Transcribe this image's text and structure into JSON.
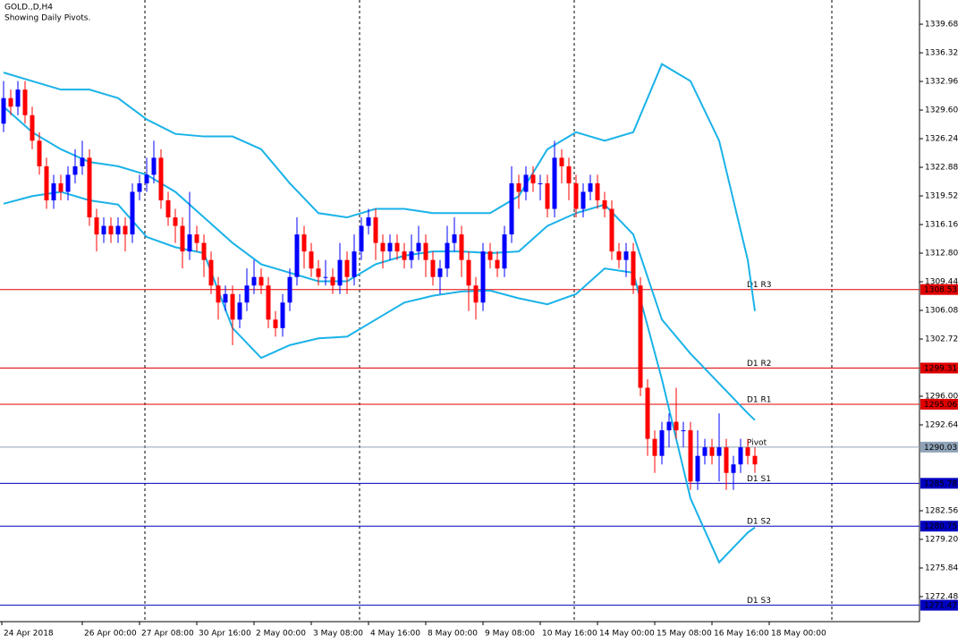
{
  "chart_data": {
    "type": "candlestick",
    "title": "GOLD.,D,H4",
    "subtitle": "Showing Daily Pivots.",
    "ylim": [
      1269.54,
      1342.52
    ],
    "yticks": [
      1339.68,
      1336.32,
      1332.96,
      {
        "value": 1329.6,
        "label": "1329.60"
      },
      1326.24,
      1322.88,
      1319.52,
      1316.16,
      {
        "value": 1312.8,
        "label": "1312.80"
      },
      1309.44,
      1306.08,
      1302.72,
      {
        "value": 1296,
        "label": "1296.00"
      },
      1292.64,
      1282.56,
      {
        "value": 1279.2,
        "label": "1279.20"
      },
      1275.84,
      1272.48
    ],
    "time_labels": [
      "24 Apr 2018",
      "26 Apr 00:00",
      "27 Apr 08:00",
      "30 Apr 16:00",
      "2 May 00:00",
      "3 May 08:00",
      "4 May 16:00",
      "8 May 00:00",
      "9 May 08:00",
      "10 May 16:00",
      "14 May 00:00",
      "15 May 08:00",
      "16 May 16:00",
      "18 May 00:00"
    ],
    "up_color": "#0000ff",
    "down_color": "#ff0000",
    "open": [
      1328,
      1331,
      1330,
      1332,
      1329,
      1326,
      1323,
      1319,
      1321,
      1320,
      1322,
      1323,
      1324,
      1317,
      1315,
      1316,
      1315,
      1316,
      1315,
      1320,
      1321,
      1322,
      1324,
      1319,
      1317,
      1316,
      1313,
      1315,
      1314,
      1312,
      1309,
      1307,
      1308,
      1305,
      1307,
      1309,
      1310,
      1309,
      1305,
      1304,
      1307,
      1310,
      1315,
      1313,
      1311,
      1310,
      1310,
      1309,
      1312,
      1310,
      1313,
      1316,
      1317,
      1314,
      1313,
      1314,
      1313,
      1312,
      1313,
      1314,
      1312,
      1310,
      1311,
      1314,
      1315,
      1312,
      1309,
      1307,
      1313,
      1312,
      1311,
      1315,
      1321,
      1320,
      1322,
      1321,
      1321,
      1318,
      1324,
      1323,
      1321,
      1318,
      1320,
      1321,
      1319,
      1318,
      1313,
      1312,
      1313,
      1309,
      1297,
      1291,
      1289,
      1292,
      1293,
      1292,
      1292,
      1286,
      1289,
      1290,
      1289,
      1290,
      1287,
      1288,
      1290,
      1289
    ],
    "high": [
      1333,
      1332,
      1333,
      1333,
      1330,
      1327,
      1324,
      1322,
      1322,
      1323,
      1325,
      1326,
      1325,
      1318,
      1317,
      1317,
      1317,
      1317,
      1321,
      1322,
      1324,
      1326,
      1325,
      1320,
      1318,
      1317,
      1320,
      1316,
      1315,
      1313,
      1310,
      1309,
      1309,
      1308,
      1311,
      1312,
      1311,
      1310,
      1306,
      1308,
      1311,
      1317,
      1316,
      1314,
      1312,
      1312,
      1311,
      1314,
      1313,
      1315,
      1317,
      1318,
      1318,
      1315,
      1315,
      1315,
      1314,
      1315,
      1316,
      1315,
      1313,
      1312,
      1316,
      1317,
      1316,
      1313,
      1310,
      1314,
      1314,
      1313,
      1316,
      1323,
      1322,
      1323,
      1323,
      1322,
      1322,
      1326,
      1325,
      1324,
      1322,
      1321,
      1322,
      1322,
      1320,
      1319,
      1314,
      1314,
      1314,
      1310,
      1298,
      1292,
      1293,
      1294,
      1297,
      1293,
      1293,
      1292,
      1291,
      1291,
      1294,
      1291,
      1289,
      1291,
      1291,
      1290
    ],
    "low": [
      1327,
      1329,
      1329,
      1328,
      1325,
      1322,
      1318,
      1318,
      1319,
      1319,
      1321,
      1322,
      1316,
      1313,
      1314,
      1314,
      1314,
      1313,
      1314,
      1319,
      1320,
      1321,
      1318,
      1316,
      1314,
      1311,
      1312,
      1313,
      1310,
      1308,
      1305,
      1306,
      1302,
      1304,
      1306,
      1308,
      1308,
      1304,
      1303,
      1303,
      1306,
      1309,
      1311,
      1310,
      1309,
      1309,
      1308,
      1308,
      1308,
      1309,
      1312,
      1315,
      1312,
      1311,
      1312,
      1312,
      1311,
      1311,
      1312,
      1310,
      1309,
      1308,
      1310,
      1313,
      1310,
      1306,
      1305,
      1306,
      1311,
      1310,
      1310,
      1314,
      1318,
      1319,
      1320,
      1319,
      1317,
      1317,
      1321,
      1319,
      1317,
      1317,
      1319,
      1318,
      1317,
      1312,
      1311,
      1310,
      1308,
      1296,
      1289,
      1287,
      1288,
      1290,
      1291,
      1290,
      1285,
      1285,
      1288,
      1288,
      1286,
      1285,
      1285,
      1287,
      1288,
      1287
    ],
    "close": [
      1331,
      1330,
      1332,
      1329,
      1326,
      1323,
      1319,
      1321,
      1320,
      1322,
      1323,
      1324,
      1317,
      1315,
      1316,
      1315,
      1316,
      1315,
      1320,
      1321,
      1322,
      1324,
      1319,
      1317,
      1316,
      1313,
      1315,
      1314,
      1312,
      1309,
      1307,
      1308,
      1305,
      1307,
      1309,
      1310,
      1309,
      1305,
      1304,
      1307,
      1310,
      1315,
      1313,
      1311,
      1310,
      1310,
      1309,
      1312,
      1310,
      1313,
      1316,
      1317,
      1314,
      1313,
      1314,
      1313,
      1312,
      1313,
      1314,
      1312,
      1310,
      1311,
      1314,
      1315,
      1312,
      1309,
      1307,
      1313,
      1312,
      1311,
      1315,
      1321,
      1320,
      1322,
      1321,
      1321,
      1318,
      1324,
      1323,
      1321,
      1318,
      1320,
      1321,
      1319,
      1318,
      1313,
      1312,
      1313,
      1309,
      1297,
      1291,
      1289,
      1292,
      1293,
      1292,
      1292,
      1286,
      1289,
      1290,
      1289,
      1290,
      1287,
      1288,
      1290,
      1289,
      1288
    ],
    "bands": {
      "color": "#1ab2e8",
      "x": [
        0,
        4,
        8,
        12,
        16,
        20,
        24,
        28,
        32,
        36,
        40,
        44,
        48,
        52,
        56,
        60,
        64,
        68,
        72,
        76,
        80,
        84,
        88,
        92,
        96,
        100,
        104,
        105
      ],
      "upper": [
        1334,
        1333,
        1332,
        1332,
        1331,
        1328.5,
        1326.8,
        1326.5,
        1326.5,
        1325,
        1321,
        1317.5,
        1317,
        1318,
        1318,
        1317.5,
        1317.5,
        1317.5,
        1319.5,
        1325,
        1327,
        1326,
        1327,
        1335,
        1333,
        1326,
        1312,
        1306
      ],
      "middle": [
        1330,
        1327,
        1325,
        1323.5,
        1323,
        1322,
        1320,
        1317,
        1314,
        1311.5,
        1310.5,
        1309.5,
        1309.5,
        1311.5,
        1312.5,
        1313,
        1313,
        1312.8,
        1313,
        1316,
        1317.5,
        1318.5,
        1315,
        1305,
        1301,
        1297.5,
        1294,
        1293.2
      ],
      "lower": [
        1318.6,
        1319.5,
        1320,
        1319,
        1318.5,
        1314.7,
        1313.5,
        1312.8,
        1304,
        1300.5,
        1302,
        1302.8,
        1303,
        1305,
        1307,
        1307.8,
        1308.3,
        1308.4,
        1307.5,
        1306.8,
        1308,
        1311,
        1310.5,
        1298,
        1284,
        1276.5,
        1280,
        1280.6
      ]
    },
    "levels": [
      {
        "name": "D1 R3",
        "value": 1308.53,
        "color": "#e00000"
      },
      {
        "name": "D1 R2",
        "value": 1299.31,
        "color": "#e00000"
      },
      {
        "name": "D1 R1",
        "value": 1295.06,
        "color": "#e00000"
      },
      {
        "name": "Pivot",
        "value": 1290.03,
        "color": "#8fa3b8"
      },
      {
        "name": "D1 S1",
        "value": 1285.78,
        "color": "#0000c0"
      },
      {
        "name": "D1 S2",
        "value": 1280.75,
        "color": "#0000c0"
      },
      {
        "name": "D1 S3",
        "value": 1271.47,
        "color": "#0000c0"
      }
    ]
  }
}
